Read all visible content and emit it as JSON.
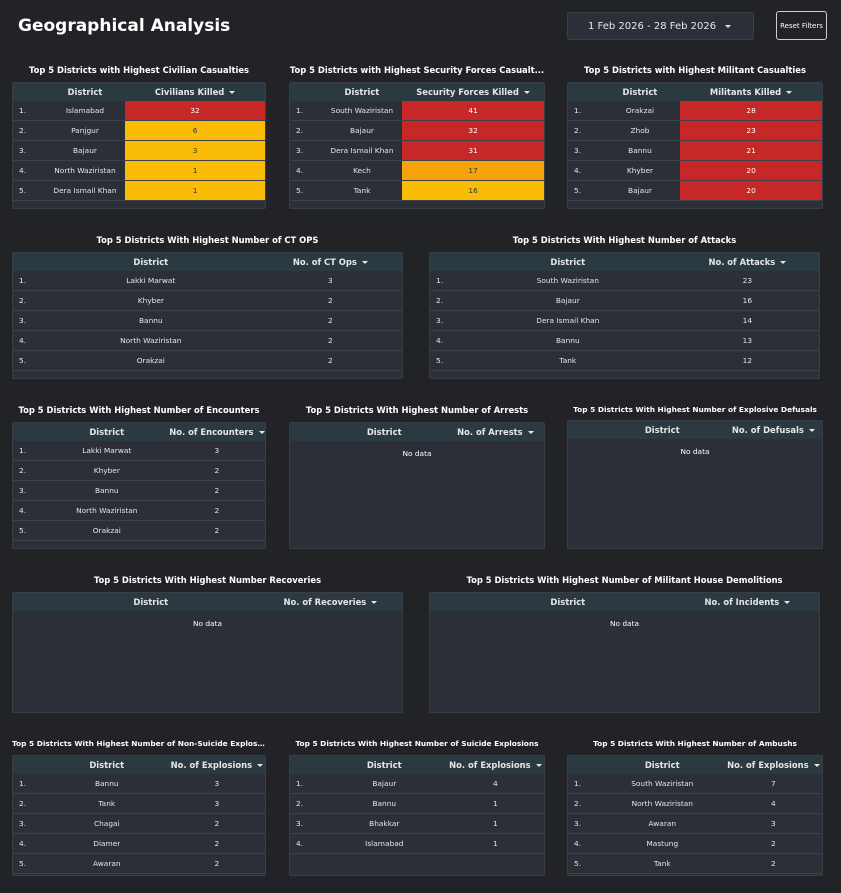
{
  "header": {
    "title": "Geographical Analysis",
    "date_range": "1 Feb 2026 - 28 Feb 2026",
    "reset_label": "Reset Filters"
  },
  "colors": {
    "high": "#c62828",
    "mid": "#f5a20b",
    "low": "#fbbc05"
  },
  "tables": [
    {
      "title": "Top 5 Districts with Highest Civilian Casualties",
      "col_district": "District",
      "col_value": "Civilians Killed",
      "rows": [
        {
          "n": "1.",
          "district": "Islamabad",
          "value": "32",
          "level": "red"
        },
        {
          "n": "2.",
          "district": "Panjgur",
          "value": "6",
          "level": "amber"
        },
        {
          "n": "3.",
          "district": "Bajaur",
          "value": "3",
          "level": "amber"
        },
        {
          "n": "4.",
          "district": "North Waziristan",
          "value": "1",
          "level": "amber"
        },
        {
          "n": "5.",
          "district": "Dera Ismail Khan",
          "value": "1",
          "level": "amber"
        }
      ]
    },
    {
      "title": "Top 5 Districts with Highest Security Forces Casualt...",
      "col_district": "District",
      "col_value": "Security Forces Killed",
      "rows": [
        {
          "n": "1.",
          "district": "South Waziristan",
          "value": "41",
          "level": "red"
        },
        {
          "n": "2.",
          "district": "Bajaur",
          "value": "32",
          "level": "red"
        },
        {
          "n": "3.",
          "district": "Dera Ismail Khan",
          "value": "31",
          "level": "red"
        },
        {
          "n": "4.",
          "district": "Kech",
          "value": "17",
          "level": "orange"
        },
        {
          "n": "5.",
          "district": "Tank",
          "value": "16",
          "level": "amber"
        }
      ]
    },
    {
      "title": "Top 5 Districts with Highest Militant Casualties",
      "col_district": "District",
      "col_value": "Militants Killed",
      "rows": [
        {
          "n": "1.",
          "district": "Orakzai",
          "value": "28",
          "level": "red"
        },
        {
          "n": "2.",
          "district": "Zhob",
          "value": "23",
          "level": "red"
        },
        {
          "n": "3.",
          "district": "Bannu",
          "value": "21",
          "level": "red"
        },
        {
          "n": "4.",
          "district": "Khyber",
          "value": "20",
          "level": "red"
        },
        {
          "n": "5.",
          "district": "Bajaur",
          "value": "20",
          "level": "red"
        }
      ]
    },
    {
      "title": "Top 5 Districts With Highest Number of CT OPS",
      "col_district": "District",
      "col_value": "No. of CT Ops",
      "rows": [
        {
          "n": "1.",
          "district": "Lakki Marwat",
          "value": "3"
        },
        {
          "n": "2.",
          "district": "Khyber",
          "value": "2"
        },
        {
          "n": "3.",
          "district": "Bannu",
          "value": "2"
        },
        {
          "n": "4.",
          "district": "North Waziristan",
          "value": "2"
        },
        {
          "n": "5.",
          "district": "Orakzai",
          "value": "2"
        }
      ]
    },
    {
      "title": "Top 5 Districts With Highest Number of Attacks",
      "col_district": "District",
      "col_value": "No. of Attacks",
      "rows": [
        {
          "n": "1.",
          "district": "South Waziristan",
          "value": "23"
        },
        {
          "n": "2.",
          "district": "Bajaur",
          "value": "16"
        },
        {
          "n": "3.",
          "district": "Dera Ismail Khan",
          "value": "14"
        },
        {
          "n": "4.",
          "district": "Bannu",
          "value": "13"
        },
        {
          "n": "5.",
          "district": "Tank",
          "value": "12"
        }
      ]
    },
    {
      "title": "Top 5 Districts With Highest Number of Encounters",
      "col_district": "District",
      "col_value": "No. of Encounters",
      "rows": [
        {
          "n": "1.",
          "district": "Lakki Marwat",
          "value": "3"
        },
        {
          "n": "2.",
          "district": "Khyber",
          "value": "2"
        },
        {
          "n": "3.",
          "district": "Bannu",
          "value": "2"
        },
        {
          "n": "4.",
          "district": "North Waziristan",
          "value": "2"
        },
        {
          "n": "5.",
          "district": "Orakzai",
          "value": "2"
        }
      ]
    },
    {
      "title": "Top 5 Districts With Highest Number of Arrests",
      "col_district": "District",
      "col_value": "No. of Arrests",
      "nodata": "No data",
      "rows": []
    },
    {
      "title": "Top 5 Districts With Highest Number of Explosive Defusals",
      "col_district": "District",
      "col_value": "No. of Defusals",
      "nodata": "No data",
      "rows": []
    },
    {
      "title": "Top 5 Districts With Highest Number Recoveries",
      "col_district": "District",
      "col_value": "No. of Recoveries",
      "nodata": "No data",
      "rows": []
    },
    {
      "title": "Top 5 Districts With Highest Number of Militant House Demolitions",
      "col_district": "District",
      "col_value": "No. of Incidents",
      "nodata": "No data",
      "rows": []
    },
    {
      "title": "Top 5 Districts With Highest Number of Non-Suicide Explosio...",
      "col_district": "District",
      "col_value": "No. of Explosions",
      "rows": [
        {
          "n": "1.",
          "district": "Bannu",
          "value": "3"
        },
        {
          "n": "2.",
          "district": "Tank",
          "value": "3"
        },
        {
          "n": "3.",
          "district": "Chagai",
          "value": "2"
        },
        {
          "n": "4.",
          "district": "Diamer",
          "value": "2"
        },
        {
          "n": "5.",
          "district": "Awaran",
          "value": "2"
        }
      ]
    },
    {
      "title": "Top 5 Districts With Highest Number of Suicide Explosions",
      "col_district": "District",
      "col_value": "No. of Explosions",
      "rows": [
        {
          "n": "1.",
          "district": "Bajaur",
          "value": "4"
        },
        {
          "n": "2.",
          "district": "Bannu",
          "value": "1"
        },
        {
          "n": "3.",
          "district": "Bhakkar",
          "value": "1"
        },
        {
          "n": "4.",
          "district": "Islamabad",
          "value": "1"
        }
      ]
    },
    {
      "title": "Top 5 Districts With Highest Number of Ambushs",
      "col_district": "District",
      "col_value": "No. of Explosions",
      "rows": [
        {
          "n": "1.",
          "district": "South Waziristan",
          "value": "7"
        },
        {
          "n": "2.",
          "district": "North Waziristan",
          "value": "4"
        },
        {
          "n": "3.",
          "district": "Awaran",
          "value": "3"
        },
        {
          "n": "4.",
          "district": "Mastung",
          "value": "2"
        },
        {
          "n": "5.",
          "district": "Tank",
          "value": "2"
        }
      ]
    }
  ]
}
